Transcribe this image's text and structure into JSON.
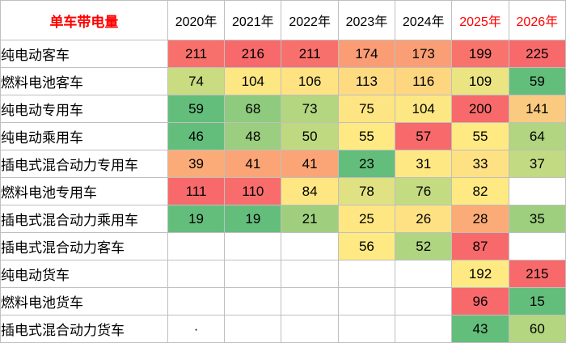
{
  "corner_label": "单车带电量",
  "years": [
    {
      "label": "2020年",
      "forecast": false
    },
    {
      "label": "2021年",
      "forecast": false
    },
    {
      "label": "2022年",
      "forecast": false
    },
    {
      "label": "2023年",
      "forecast": false
    },
    {
      "label": "2024年",
      "forecast": false
    },
    {
      "label": "2025年",
      "forecast": true
    },
    {
      "label": "2026年",
      "forecast": true
    }
  ],
  "colors": {
    "header_text": "#000000",
    "forecast_header_text": "#ff0000",
    "corner_text": "#ff0000",
    "grid_border": "#bfbfbf"
  },
  "rows": [
    {
      "label": "纯电动客车",
      "cells": [
        {
          "v": "211",
          "bg": "#f8706b"
        },
        {
          "v": "216",
          "bg": "#f8696b"
        },
        {
          "v": "211",
          "bg": "#f8706b"
        },
        {
          "v": "174",
          "bg": "#fa9d75"
        },
        {
          "v": "173",
          "bg": "#fa9f75"
        },
        {
          "v": "199",
          "bg": "#f8736b"
        },
        {
          "v": "225",
          "bg": "#f8696b"
        }
      ]
    },
    {
      "label": "燃料电池客车",
      "cells": [
        {
          "v": "74",
          "bg": "#c9dc81"
        },
        {
          "v": "104",
          "bg": "#fde783"
        },
        {
          "v": "106",
          "bg": "#ffe383"
        },
        {
          "v": "113",
          "bg": "#fedb81"
        },
        {
          "v": "116",
          "bg": "#fed680"
        },
        {
          "v": "109",
          "bg": "#eae582"
        },
        {
          "v": "59",
          "bg": "#63be7b"
        }
      ]
    },
    {
      "label": "纯电动专用车",
      "cells": [
        {
          "v": "59",
          "bg": "#63be7b"
        },
        {
          "v": "68",
          "bg": "#8fcb7e"
        },
        {
          "v": "73",
          "bg": "#b4d680"
        },
        {
          "v": "75",
          "bg": "#fee583"
        },
        {
          "v": "104",
          "bg": "#fde783"
        },
        {
          "v": "200",
          "bg": "#f8696b"
        },
        {
          "v": "141",
          "bg": "#f9ca7f"
        }
      ]
    },
    {
      "label": "纯电动乘用车",
      "cells": [
        {
          "v": "46",
          "bg": "#63be7b"
        },
        {
          "v": "48",
          "bg": "#9bce7f"
        },
        {
          "v": "50",
          "bg": "#bfd981"
        },
        {
          "v": "55",
          "bg": "#fee983"
        },
        {
          "v": "57",
          "bg": "#f8696b"
        },
        {
          "v": "55",
          "bg": "#fee983"
        },
        {
          "v": "64",
          "bg": "#b1d580"
        }
      ]
    },
    {
      "label": "插电式混合动力专用车",
      "cells": [
        {
          "v": "39",
          "bg": "#fbab77"
        },
        {
          "v": "41",
          "bg": "#fba576"
        },
        {
          "v": "41",
          "bg": "#fba576"
        },
        {
          "v": "23",
          "bg": "#63be7b"
        },
        {
          "v": "31",
          "bg": "#fee883"
        },
        {
          "v": "33",
          "bg": "#fee183"
        },
        {
          "v": "37",
          "bg": "#c2da81"
        }
      ]
    },
    {
      "label": "燃料电池专用车",
      "cells": [
        {
          "v": "111",
          "bg": "#f8696b"
        },
        {
          "v": "110",
          "bg": "#f86c6c"
        },
        {
          "v": "84",
          "bg": "#fee783"
        },
        {
          "v": "78",
          "bg": "#dfe183"
        },
        {
          "v": "76",
          "bg": "#c3db81"
        },
        {
          "v": "82",
          "bg": "#fee983"
        },
        {
          "v": "",
          "bg": "#ffffff"
        }
      ]
    },
    {
      "label": "插电式混合动力乘用车",
      "cells": [
        {
          "v": "19",
          "bg": "#63be7b"
        },
        {
          "v": "19",
          "bg": "#63be7b"
        },
        {
          "v": "21",
          "bg": "#9fcf7e"
        },
        {
          "v": "25",
          "bg": "#fee783"
        },
        {
          "v": "26",
          "bg": "#fee183"
        },
        {
          "v": "28",
          "bg": "#fbab77"
        },
        {
          "v": "35",
          "bg": "#9ecf7f"
        }
      ]
    },
    {
      "label": "插电式混合动力客车",
      "cells": [
        {
          "v": "",
          "bg": "#ffffff"
        },
        {
          "v": "",
          "bg": "#ffffff"
        },
        {
          "v": "",
          "bg": "#ffffff"
        },
        {
          "v": "56",
          "bg": "#fee983"
        },
        {
          "v": "52",
          "bg": "#b0d580"
        },
        {
          "v": "87",
          "bg": "#f8696b"
        },
        {
          "v": "",
          "bg": "#ffffff"
        }
      ]
    },
    {
      "label": "纯电动货车",
      "cells": [
        {
          "v": "",
          "bg": "#ffffff"
        },
        {
          "v": "",
          "bg": "#ffffff"
        },
        {
          "v": "",
          "bg": "#ffffff"
        },
        {
          "v": "",
          "bg": "#ffffff"
        },
        {
          "v": "",
          "bg": "#ffffff"
        },
        {
          "v": "192",
          "bg": "#fee983"
        },
        {
          "v": "215",
          "bg": "#f8696b"
        }
      ]
    },
    {
      "label": "燃料电池货车",
      "cells": [
        {
          "v": "",
          "bg": "#ffffff"
        },
        {
          "v": "",
          "bg": "#ffffff"
        },
        {
          "v": "",
          "bg": "#ffffff"
        },
        {
          "v": "",
          "bg": "#ffffff"
        },
        {
          "v": "",
          "bg": "#ffffff"
        },
        {
          "v": "96",
          "bg": "#f8696b"
        },
        {
          "v": "15",
          "bg": "#63be7b"
        }
      ]
    },
    {
      "label": "插电式混合动力货车",
      "cells": [
        {
          "v": "·",
          "bg": "#ffffff"
        },
        {
          "v": "",
          "bg": "#ffffff"
        },
        {
          "v": "",
          "bg": "#ffffff"
        },
        {
          "v": "",
          "bg": "#ffffff"
        },
        {
          "v": "",
          "bg": "#ffffff"
        },
        {
          "v": "43",
          "bg": "#63be7b"
        },
        {
          "v": "60",
          "bg": "#b4d680"
        }
      ]
    }
  ]
}
